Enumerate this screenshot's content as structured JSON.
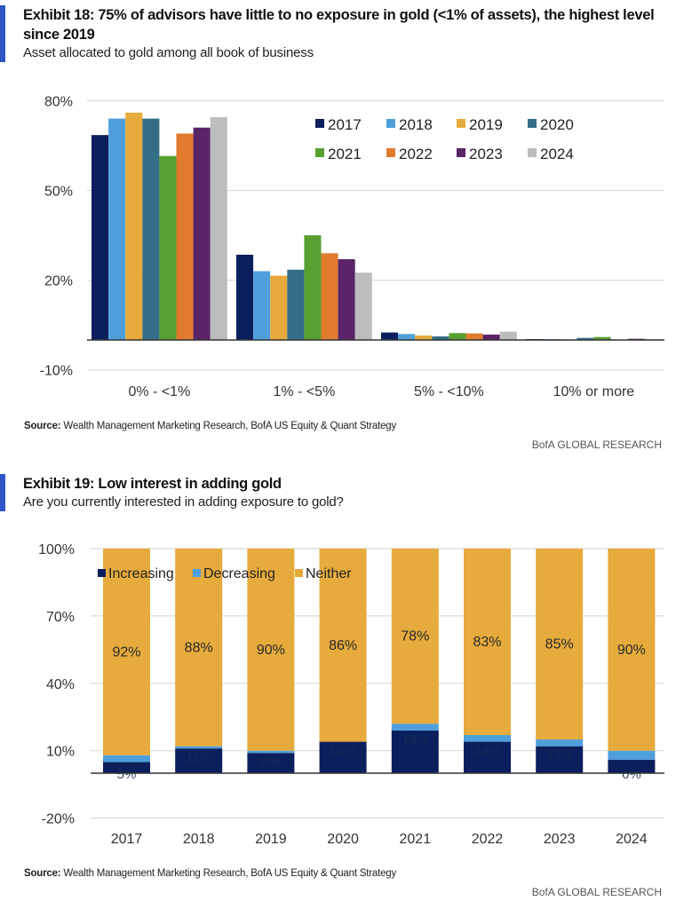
{
  "exhibit18": {
    "title_line1": "Exhibit 18: 75% of advisors have little to no exposure in gold (<1% of assets), the highest level",
    "title_line2": "since 2019",
    "subtitle": "Asset allocated to gold among all book of business",
    "source_label": "Source:",
    "source_text": " Wealth Management Marketing Research, BofA US Equity & Quant Strategy",
    "brand": "BofA GLOBAL RESEARCH"
  },
  "exhibit19": {
    "title": "Exhibit 19: Low interest in adding gold",
    "subtitle": "Are you currently interested in adding exposure to gold?",
    "source_label": "Source:",
    "source_text": " Wealth Management Marketing Research, BofA US Equity & Quant Strategy",
    "brand": "BofA GLOBAL RESEARCH"
  },
  "colors": {
    "accent": "#2f55c8",
    "2017": "#0b1f5c",
    "2018": "#4f9fdc",
    "2019": "#e6ab3c",
    "2020": "#336e86",
    "2021": "#58a032",
    "2022": "#e07b2e",
    "2023": "#5a2466",
    "2024": "#bdbdbd",
    "increasing": "#0b1f5c",
    "decreasing": "#4f9fdc",
    "neither": "#e6ab3c"
  },
  "chart_data": [
    {
      "type": "bar",
      "title": "Exhibit 18: 75% of advisors have little to no exposure in gold (<1% of assets), the highest level since 2019",
      "subtitle": "Asset allocated to gold among all book of business",
      "xlabel": "",
      "ylabel": "",
      "categories": [
        "0% - <1%",
        "1% - <5%",
        "5% - <10%",
        "10% or more"
      ],
      "yticks": [
        -10,
        20,
        50,
        80
      ],
      "ytick_labels": [
        "-10%",
        "20%",
        "50%",
        "80%"
      ],
      "ylim": [
        -10,
        80
      ],
      "grid": true,
      "legend_position": "top-right",
      "series": [
        {
          "name": "2017",
          "values": [
            68.5,
            28.5,
            2.5,
            0.3
          ]
        },
        {
          "name": "2018",
          "values": [
            74,
            23,
            2,
            0.3
          ]
        },
        {
          "name": "2019",
          "values": [
            76,
            21.5,
            1.5,
            0.2
          ]
        },
        {
          "name": "2020",
          "values": [
            74,
            23.5,
            1.2,
            0.7
          ]
        },
        {
          "name": "2021",
          "values": [
            61.5,
            35,
            2.3,
            1
          ]
        },
        {
          "name": "2022",
          "values": [
            69,
            29,
            2.2,
            0.1
          ]
        },
        {
          "name": "2023",
          "values": [
            71,
            27,
            1.8,
            0.4
          ]
        },
        {
          "name": "2024",
          "values": [
            74.5,
            22.5,
            2.8,
            0.3
          ]
        }
      ]
    },
    {
      "type": "bar",
      "stacked": true,
      "title": "Exhibit 19: Low interest in adding gold",
      "subtitle": "Are you currently interested in adding exposure to gold?",
      "xlabel": "",
      "ylabel": "",
      "categories": [
        "2017",
        "2018",
        "2019",
        "2020",
        "2021",
        "2022",
        "2023",
        "2024"
      ],
      "yticks": [
        -20,
        10,
        40,
        70,
        100
      ],
      "ytick_labels": [
        "-20%",
        "10%",
        "40%",
        "70%",
        "100%"
      ],
      "ylim": [
        -20,
        100
      ],
      "grid": true,
      "legend_position": "top-left",
      "series": [
        {
          "name": "Increasing",
          "values": [
            5,
            11,
            9,
            14,
            19,
            14,
            12,
            6
          ],
          "labels": [
            "5%",
            "11%",
            "9%",
            "14%",
            "19%",
            "14%",
            "12%",
            "6%"
          ]
        },
        {
          "name": "Decreasing",
          "values": [
            3,
            1,
            1,
            0,
            3,
            3,
            3,
            4
          ]
        },
        {
          "name": "Neither",
          "values": [
            92,
            88,
            90,
            86,
            78,
            83,
            85,
            90
          ],
          "labels": [
            "92%",
            "88%",
            "90%",
            "86%",
            "78%",
            "83%",
            "85%",
            "90%"
          ]
        }
      ]
    }
  ]
}
